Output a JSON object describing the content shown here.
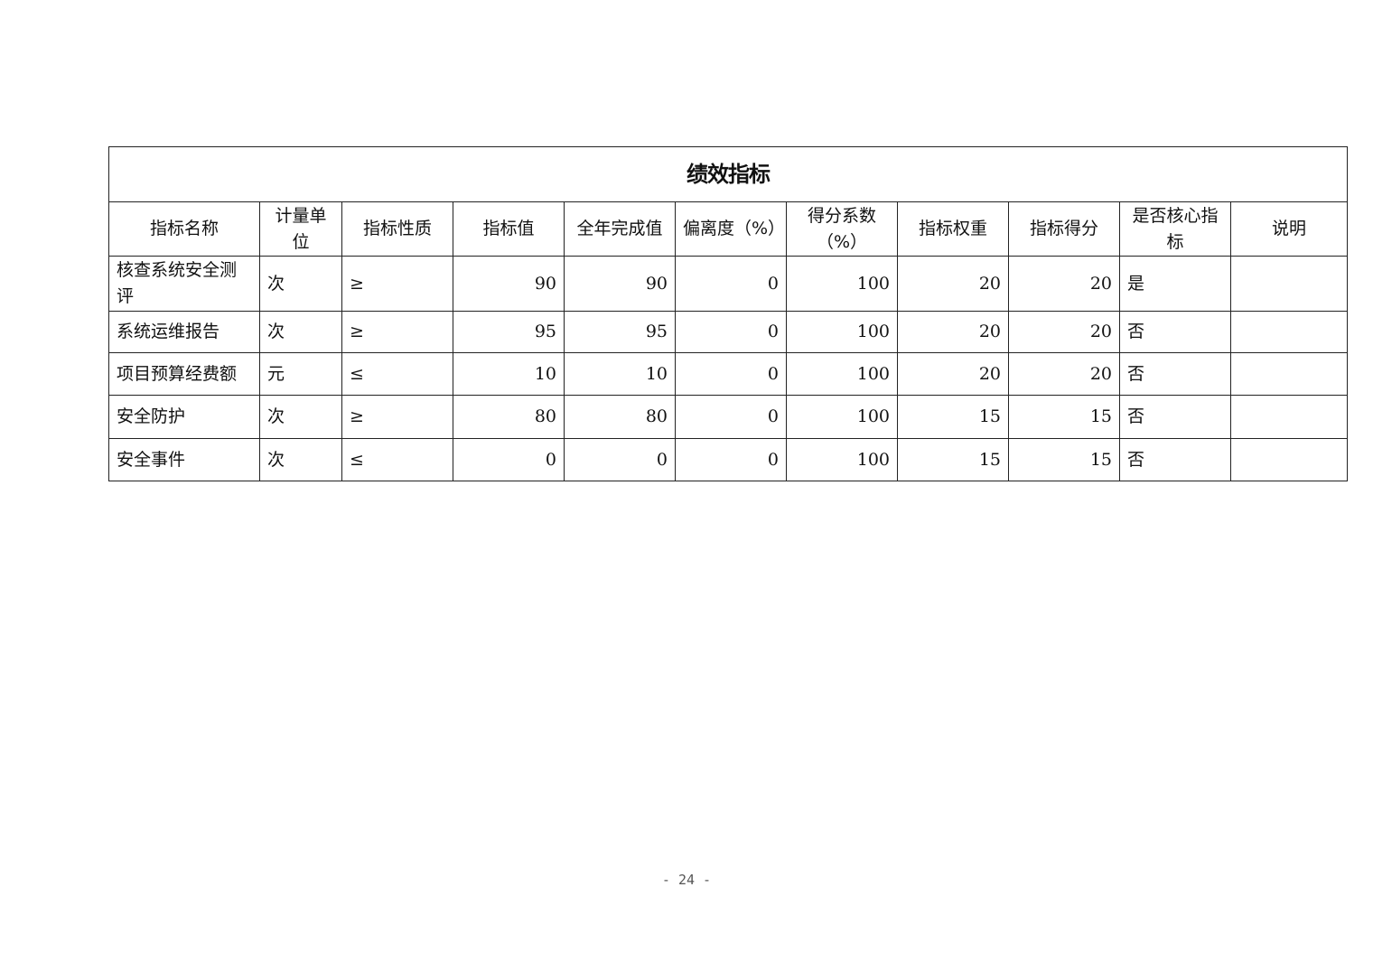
{
  "table": {
    "title": "绩效指标",
    "headers": [
      "指标名称",
      "计量单位",
      "指标性质",
      "指标值",
      "全年完成值",
      "偏离度（%）",
      "得分系数（%）",
      "指标权重",
      "指标得分",
      "是否核心指标",
      "说明"
    ],
    "rows": [
      [
        "核查系统安全测评",
        "次",
        "≥",
        "90",
        "90",
        "0",
        "100",
        "20",
        "20",
        "是",
        ""
      ],
      [
        "系统运维报告",
        "次",
        "≥",
        "95",
        "95",
        "0",
        "100",
        "20",
        "20",
        "否",
        ""
      ],
      [
        "项目预算经费额",
        "元",
        "≤",
        "10",
        "10",
        "0",
        "100",
        "20",
        "20",
        "否",
        ""
      ],
      [
        "安全防护",
        "次",
        "≥",
        "80",
        "80",
        "0",
        "100",
        "15",
        "15",
        "否",
        ""
      ],
      [
        "安全事件",
        "次",
        "≤",
        "0",
        "0",
        "0",
        "100",
        "15",
        "15",
        "否",
        ""
      ]
    ]
  },
  "footer": {
    "page_number": "- 24 -"
  }
}
